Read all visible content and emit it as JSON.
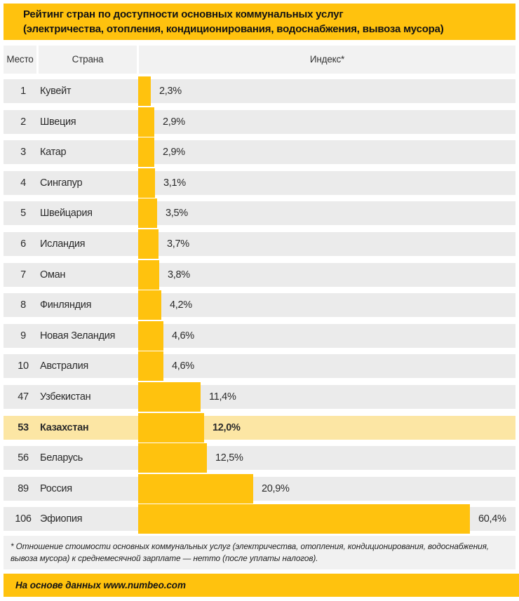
{
  "title": {
    "line1": "Рейтинг стран по доступности основных коммунальных услуг",
    "line2": "(электричества, отопления, кондиционирования, водоснабжения, вывоза мусора)"
  },
  "table": {
    "columns": [
      "Место",
      "Страна",
      "Индекс*"
    ]
  },
  "rows": [
    {
      "place": "1",
      "country": "Кувейт",
      "index_label": "2,3%",
      "index_value": 2.3,
      "highlight": false
    },
    {
      "place": "2",
      "country": "Швеция",
      "index_label": "2,9%",
      "index_value": 2.9,
      "highlight": false
    },
    {
      "place": "3",
      "country": "Катар",
      "index_label": "2,9%",
      "index_value": 2.9,
      "highlight": false
    },
    {
      "place": "4",
      "country": "Сингапур",
      "index_label": "3,1%",
      "index_value": 3.1,
      "highlight": false
    },
    {
      "place": "5",
      "country": "Швейцария",
      "index_label": "3,5%",
      "index_value": 3.5,
      "highlight": false
    },
    {
      "place": "6",
      "country": "Исландия",
      "index_label": "3,7%",
      "index_value": 3.7,
      "highlight": false
    },
    {
      "place": "7",
      "country": "Оман",
      "index_label": "3,8%",
      "index_value": 3.8,
      "highlight": false
    },
    {
      "place": "8",
      "country": "Финляндия",
      "index_label": "4,2%",
      "index_value": 4.2,
      "highlight": false
    },
    {
      "place": "9",
      "country": "Новая Зеландия",
      "index_label": "4,6%",
      "index_value": 4.6,
      "highlight": false
    },
    {
      "place": "10",
      "country": "Австралия",
      "index_label": "4,6%",
      "index_value": 4.6,
      "highlight": false
    },
    {
      "place": "47",
      "country": "Узбекистан",
      "index_label": "11,4%",
      "index_value": 11.4,
      "highlight": false
    },
    {
      "place": "53",
      "country": "Казахстан",
      "index_label": "12,0%",
      "index_value": 12.0,
      "highlight": true
    },
    {
      "place": "56",
      "country": "Беларусь",
      "index_label": "12,5%",
      "index_value": 12.5,
      "highlight": false
    },
    {
      "place": "89",
      "country": "Россия",
      "index_label": "20,9%",
      "index_value": 20.9,
      "highlight": false
    },
    {
      "place": "106",
      "country": "Эфиопия",
      "index_label": "60,4%",
      "index_value": 60.4,
      "highlight": false
    }
  ],
  "footnote": "* Отношение стоимости основных коммунальных услуг (электричества, отопления, кондиционирования, водоснабжения, вывоза мусора) к среднемесячной зарплате — нетто (после уплаты налогов).",
  "source": "На основе данных www.numbeo.com",
  "colors": {
    "accent": "#FFC20E",
    "row_bg": "#EBEBEB",
    "highlight_row": "#FCE6A4"
  },
  "chart_data": {
    "type": "bar",
    "orientation": "horizontal",
    "title": "Рейтинг стран по доступности основных коммунальных услуг (электричества, отопления, кондиционирования, водоснабжения, вывоза мусора)",
    "categories": [
      "Кувейт",
      "Швеция",
      "Катар",
      "Сингапур",
      "Швейцария",
      "Исландия",
      "Оман",
      "Финляндия",
      "Новая Зеландия",
      "Австралия",
      "Узбекистан",
      "Казахстан",
      "Беларусь",
      "Россия",
      "Эфиопия"
    ],
    "ranks": [
      1,
      2,
      3,
      4,
      5,
      6,
      7,
      8,
      9,
      10,
      47,
      53,
      56,
      89,
      106
    ],
    "values": [
      2.3,
      2.9,
      2.9,
      3.1,
      3.5,
      3.7,
      3.8,
      4.2,
      4.6,
      4.6,
      11.4,
      12.0,
      12.5,
      20.9,
      60.4
    ],
    "unit": "%",
    "xlabel": "Индекс*",
    "xlim": [
      0,
      62
    ],
    "grid": false,
    "legend": false,
    "highlight_category": "Казахстан",
    "data_labels": true,
    "source": "На основе данных www.numbeo.com"
  }
}
